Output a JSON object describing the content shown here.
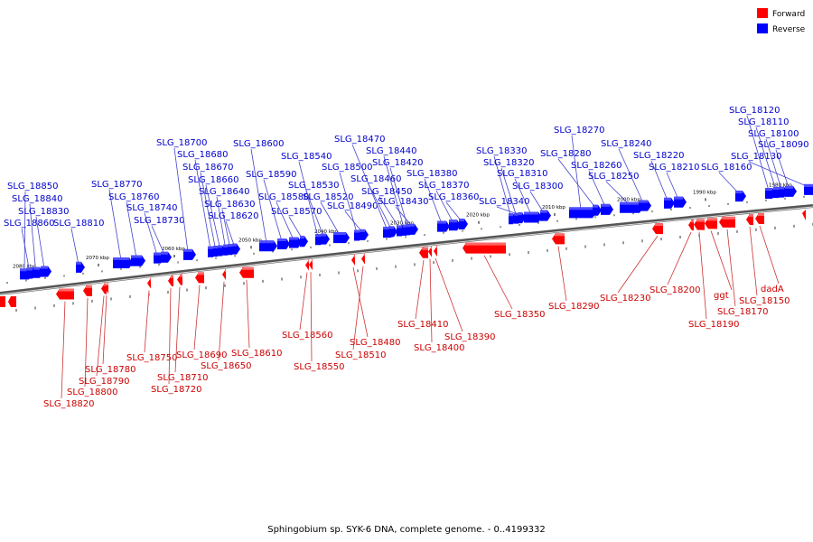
{
  "legend": {
    "forward": {
      "label": "Forward",
      "color": "#ff0000"
    },
    "reverse": {
      "label": "Reverse",
      "color": "#0000ff"
    }
  },
  "caption": "Sphingobium sp. SYK-6 DNA, complete genome. - 0..4199332",
  "kbp_ticks": [
    "2080 kbp",
    "2070 kbp",
    "2060 kbp",
    "2050 kbp",
    "2040 kbp",
    "2030 kbp",
    "2020 kbp",
    "2010 kbp",
    "2000 kbp",
    "1990 kbp",
    "1980 kbp"
  ],
  "reverse_genes": [
    "SLG_18850",
    "SLG_18840",
    "SLG_18830",
    "SLG_18860",
    "SLG_18810",
    "SLG_18770",
    "SLG_18760",
    "SLG_18740",
    "SLG_18730",
    "SLG_18700",
    "SLG_18680",
    "SLG_18670",
    "SLG_18660",
    "SLG_18640",
    "SLG_18630",
    "SLG_18620",
    "SLG_18600",
    "SLG_18590",
    "SLG_18580",
    "SLG_18570",
    "SLG_18540",
    "SLG_18530",
    "SLG_18520",
    "SLG_18500",
    "SLG_18490",
    "SLG_18470",
    "SLG_18460",
    "SLG_18440",
    "SLG_18420",
    "SLG_18450",
    "SLG_18430",
    "SLG_18380",
    "SLG_18370",
    "SLG_18360",
    "SLG_18330",
    "SLG_18320",
    "SLG_18310",
    "SLG_18340",
    "SLG_18300",
    "SLG_18270",
    "SLG_18280",
    "SLG_18260",
    "SLG_18250",
    "SLG_18240",
    "SLG_18220",
    "SLG_18210",
    "SLG_18160",
    "SLG_18120",
    "SLG_18110",
    "SLG_18100",
    "SLG_18090",
    "SLG_18130"
  ],
  "forward_genes": [
    "SLG_18820",
    "SLG_18800",
    "SLG_18790",
    "SLG_18780",
    "SLG_18750",
    "SLG_18720",
    "SLG_18710",
    "SLG_18690",
    "SLG_18650",
    "SLG_18610",
    "SLG_18560",
    "SLG_18550",
    "SLG_18510",
    "SLG_18480",
    "SLG_18410",
    "SLG_18400",
    "SLG_18390",
    "SLG_18350",
    "SLG_18290",
    "SLG_18230",
    "SLG_18200",
    "SLG_18190",
    "ggt",
    "SLG_18170",
    "SLG_18150",
    "dadA"
  ]
}
